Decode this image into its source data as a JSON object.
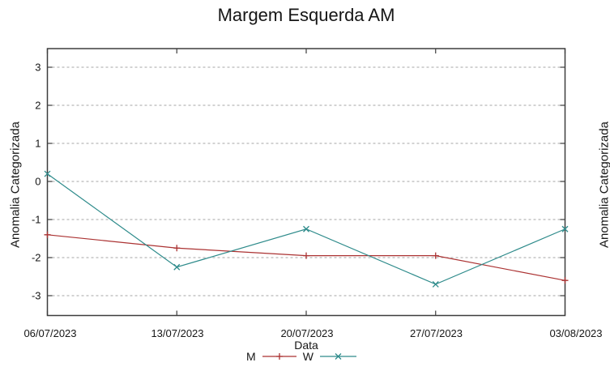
{
  "colors": {
    "series_m": "#ab3232",
    "series_w": "#2e8b8b",
    "grid": "#a6a6a6",
    "frame": "#3d3d3d",
    "text": "#161616"
  },
  "chart_data": {
    "type": "line",
    "title": "Margem Esquerda AM",
    "xlabel": "Data",
    "ylabel": "Anomalia Categorizada",
    "categories": [
      "06/07/2023",
      "13/07/2023",
      "20/07/2023",
      "27/07/2023",
      "03/08/2023"
    ],
    "series": [
      {
        "name": "M",
        "marker": "plus",
        "color": "#ab3232",
        "values": [
          -1.4,
          -1.75,
          -1.95,
          -1.95,
          -2.6
        ]
      },
      {
        "name": "W",
        "marker": "cross",
        "color": "#2e8b8b",
        "values": [
          0.2,
          -2.25,
          -1.25,
          -2.7,
          -1.25
        ]
      }
    ],
    "yticks": [
      -3,
      -2,
      -1,
      0,
      1,
      2,
      3
    ],
    "ylim": [
      -3.5,
      3.5
    ],
    "grid": "horizontal-dashed",
    "legend_position": "bottom-center"
  },
  "partial_right_chart": {
    "ylabel": "Anomalia Categorizada"
  }
}
